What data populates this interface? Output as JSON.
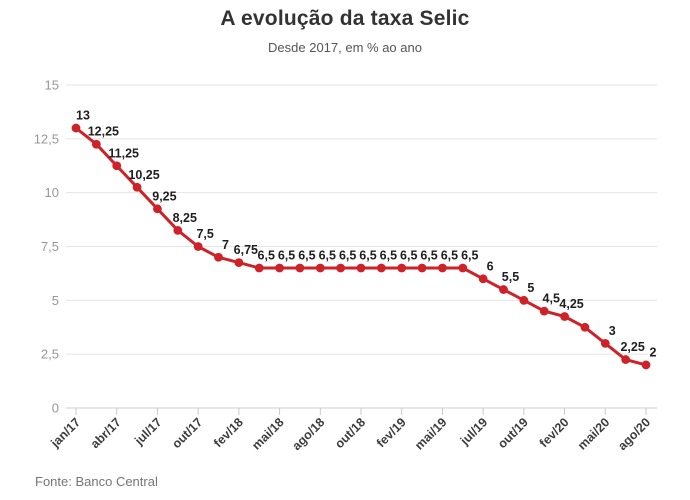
{
  "header": {
    "title": "A evolução da taxa Selic",
    "subtitle": "Desde 2017, em % ao ano"
  },
  "footer": {
    "source": "Fonte: Banco Central"
  },
  "chart_data": {
    "type": "line",
    "title": "A evolução da taxa Selic",
    "subtitle": "Desde 2017, em % ao ano",
    "source": "Fonte: Banco Central",
    "ylabel": "% ao ano",
    "ylim": [
      0,
      15
    ],
    "grid": true,
    "legend_position": "none",
    "decimal_format": "comma",
    "colors": {
      "series": "#cd2328",
      "grid": "#e4e4e4",
      "axis": "#cfcfcf",
      "tick": "#c8c8c8",
      "y_label": "#979797",
      "x_label": "#3d3d3d",
      "point_label": "#1f1f1f"
    },
    "y_ticks": [
      {
        "value": 0,
        "label": "0"
      },
      {
        "value": 2.5,
        "label": "2,5"
      },
      {
        "value": 5,
        "label": "5"
      },
      {
        "value": 7.5,
        "label": "7,5"
      },
      {
        "value": 10,
        "label": "10"
      },
      {
        "value": 12.5,
        "label": "12,5"
      },
      {
        "value": 15,
        "label": "15"
      }
    ],
    "x_tick_labels": [
      "jan/17",
      "abr/17",
      "jul/17",
      "out/17",
      "fev/18",
      "mai/18",
      "ago/18",
      "out/18",
      "fev/19",
      "mai/19",
      "jul/19",
      "out/19",
      "fev/20",
      "mai/20",
      "ago/20"
    ],
    "points": [
      {
        "value": 13,
        "label": "13",
        "tick": "jan/17"
      },
      {
        "value": 12.25,
        "label": "12,25"
      },
      {
        "value": 11.25,
        "label": "11,25",
        "tick": "abr/17"
      },
      {
        "value": 10.25,
        "label": "10,25"
      },
      {
        "value": 9.25,
        "label": "9,25",
        "tick": "jul/17"
      },
      {
        "value": 8.25,
        "label": "8,25"
      },
      {
        "value": 7.5,
        "label": "7,5",
        "tick": "out/17"
      },
      {
        "value": 7,
        "label": "7"
      },
      {
        "value": 6.75,
        "label": "6,75",
        "tick": "fev/18"
      },
      {
        "value": 6.5,
        "label": "6,5"
      },
      {
        "value": 6.5,
        "label": "6,5",
        "tick": "mai/18"
      },
      {
        "value": 6.5,
        "label": "6,5"
      },
      {
        "value": 6.5,
        "label": "6,5",
        "tick": "ago/18"
      },
      {
        "value": 6.5,
        "label": "6,5"
      },
      {
        "value": 6.5,
        "label": "6,5",
        "tick": "out/18"
      },
      {
        "value": 6.5,
        "label": "6,5"
      },
      {
        "value": 6.5,
        "label": "6,5",
        "tick": "fev/19"
      },
      {
        "value": 6.5,
        "label": "6,5"
      },
      {
        "value": 6.5,
        "label": "6,5",
        "tick": "mai/19"
      },
      {
        "value": 6.5,
        "label": "6,5"
      },
      {
        "value": 6,
        "label": "6",
        "tick": "jul/19"
      },
      {
        "value": 5.5,
        "label": "5,5"
      },
      {
        "value": 5,
        "label": "5",
        "tick": "out/19"
      },
      {
        "value": 4.5,
        "label": "4,5"
      },
      {
        "value": 4.25,
        "label": "4,25",
        "tick": "fev/20"
      },
      {
        "value": 3.75,
        "label": ""
      },
      {
        "value": 3,
        "label": "3",
        "tick": "mai/20"
      },
      {
        "value": 2.25,
        "label": "2,25"
      },
      {
        "value": 2,
        "label": "2",
        "tick": "ago/20"
      }
    ]
  }
}
